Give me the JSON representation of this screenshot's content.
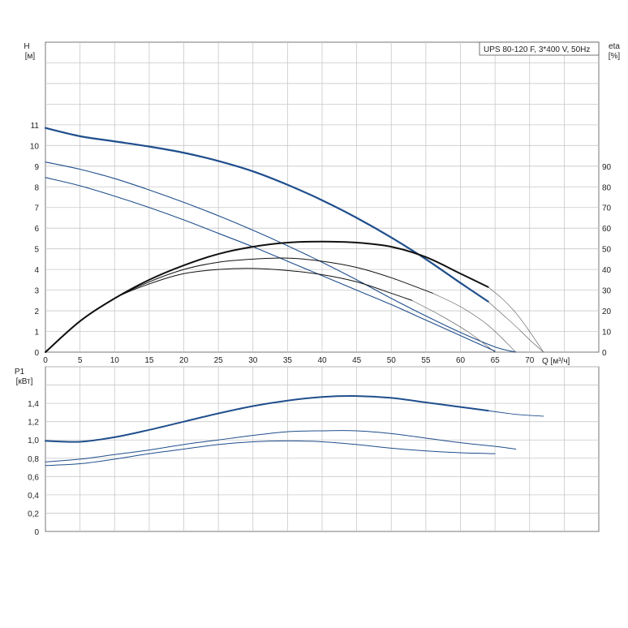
{
  "chart_data": [
    {
      "type": "line",
      "title": "",
      "legend_box": "UPS 80-120 F, 3*400 V, 50Hz",
      "xlabel": "Q [м³/ч]",
      "ylabel": "H",
      "ylabel_unit": "[м]",
      "y2label": "eta",
      "y2label_unit": "[%]",
      "xlim": [
        0,
        80
      ],
      "ylim": [
        0,
        15
      ],
      "y2lim": [
        0,
        150
      ],
      "x_ticks": [
        0,
        5,
        10,
        15,
        20,
        25,
        30,
        35,
        40,
        45,
        50,
        55,
        60,
        65,
        70
      ],
      "y_ticks": [
        0,
        1,
        2,
        3,
        4,
        5,
        6,
        7,
        8,
        9,
        10,
        11
      ],
      "y2_ticks": [
        0,
        10,
        20,
        30,
        40,
        50,
        60,
        70,
        80,
        90
      ],
      "grid": true,
      "series": [
        {
          "role": "head",
          "axis": "left",
          "color": "#1f4e8c",
          "width": 2.2,
          "x": [
            0,
            5,
            10,
            15,
            20,
            25,
            30,
            35,
            40,
            45,
            50,
            55,
            60,
            64
          ],
          "y": [
            10.85,
            10.45,
            10.2,
            9.95,
            9.65,
            9.25,
            8.75,
            8.1,
            7.35,
            6.5,
            5.55,
            4.5,
            3.35,
            2.45
          ]
        },
        {
          "role": "head",
          "axis": "left",
          "color": "#1f4e8c",
          "width": 1.1,
          "x": [
            0,
            5,
            10,
            15,
            20,
            25,
            30,
            35,
            40,
            45,
            50,
            55,
            60,
            65,
            68
          ],
          "y": [
            9.2,
            8.85,
            8.4,
            7.85,
            7.25,
            6.6,
            5.9,
            5.15,
            4.35,
            3.5,
            2.6,
            1.75,
            0.95,
            0.25,
            0
          ]
        },
        {
          "role": "head",
          "axis": "left",
          "color": "#1f4e8c",
          "width": 1.1,
          "x": [
            0,
            5,
            10,
            15,
            20,
            25,
            30,
            35,
            40,
            45,
            50,
            55,
            60,
            65
          ],
          "y": [
            8.45,
            8.05,
            7.55,
            7.0,
            6.4,
            5.75,
            5.1,
            4.4,
            3.7,
            3.0,
            2.3,
            1.55,
            0.8,
            0.05
          ]
        },
        {
          "role": "head-extension",
          "axis": "left",
          "color": "#555555",
          "width": 0.6,
          "x": [
            64,
            66,
            68,
            70,
            72
          ],
          "y": [
            2.45,
            1.85,
            1.25,
            0.6,
            0
          ]
        },
        {
          "role": "eta",
          "axis": "right",
          "color": "#111111",
          "width": 2.0,
          "x": [
            0,
            5,
            10,
            15,
            20,
            25,
            30,
            35,
            40,
            45,
            50,
            55,
            60,
            64
          ],
          "y": [
            0,
            15,
            26,
            35,
            42,
            47.5,
            51,
            53,
            53.5,
            53,
            51,
            46,
            38,
            31.5
          ]
        },
        {
          "role": "eta",
          "axis": "right",
          "color": "#111111",
          "width": 1.0,
          "x": [
            0,
            5,
            10,
            15,
            20,
            25,
            30,
            35,
            40,
            45,
            50,
            56
          ],
          "y": [
            0,
            15,
            26,
            34,
            40,
            43.5,
            45,
            45.5,
            44,
            41,
            36,
            28.5
          ]
        },
        {
          "role": "eta",
          "axis": "right",
          "color": "#111111",
          "width": 1.0,
          "x": [
            0,
            5,
            10,
            15,
            20,
            25,
            30,
            35,
            40,
            45,
            50,
            53
          ],
          "y": [
            0,
            15,
            26,
            33,
            38,
            40,
            40.5,
            39.5,
            37.5,
            34,
            28.5,
            25
          ]
        },
        {
          "role": "eta-extension",
          "axis": "right",
          "color": "#555555",
          "width": 0.6,
          "x": [
            64,
            66,
            68,
            70,
            72
          ],
          "y": [
            31.5,
            26,
            19,
            10,
            0
          ]
        },
        {
          "role": "eta-extension",
          "axis": "right",
          "color": "#555555",
          "width": 0.6,
          "x": [
            56,
            60,
            64,
            68
          ],
          "y": [
            28.5,
            22,
            13,
            0
          ]
        },
        {
          "role": "eta-extension",
          "axis": "right",
          "color": "#555555",
          "width": 0.6,
          "x": [
            53,
            57,
            61,
            65
          ],
          "y": [
            25,
            18,
            10,
            0
          ]
        }
      ]
    },
    {
      "type": "line",
      "title": "",
      "xlabel": "",
      "ylabel": "P1",
      "ylabel_unit": "[кВт]",
      "xlim": [
        0,
        80
      ],
      "ylim": [
        0,
        1.8
      ],
      "x_ticks": [
        0,
        5,
        10,
        15,
        20,
        25,
        30,
        35,
        40,
        45,
        50,
        55,
        60,
        65,
        70
      ],
      "y_ticks": [
        "0",
        "0,2",
        "0,4",
        "0,6",
        "0,8",
        "1,0",
        "1,2",
        "1,4"
      ],
      "y_tick_values": [
        0,
        0.2,
        0.4,
        0.6,
        0.8,
        1.0,
        1.2,
        1.4
      ],
      "grid": true,
      "series": [
        {
          "role": "power",
          "color": "#1f4e8c",
          "width": 2.0,
          "x": [
            0,
            5,
            10,
            15,
            20,
            25,
            30,
            35,
            40,
            45,
            50,
            55,
            60,
            64
          ],
          "y": [
            0.99,
            0.98,
            1.03,
            1.11,
            1.2,
            1.29,
            1.37,
            1.43,
            1.47,
            1.48,
            1.46,
            1.41,
            1.36,
            1.32
          ]
        },
        {
          "role": "power-extension",
          "color": "#1f4e8c",
          "width": 0.9,
          "x": [
            64,
            68,
            72
          ],
          "y": [
            1.32,
            1.28,
            1.26
          ]
        },
        {
          "role": "power",
          "color": "#1f4e8c",
          "width": 1.0,
          "x": [
            0,
            5,
            10,
            15,
            20,
            25,
            30,
            35,
            40,
            45,
            50,
            55,
            60,
            65,
            68
          ],
          "y": [
            0.76,
            0.79,
            0.84,
            0.89,
            0.95,
            1.0,
            1.05,
            1.09,
            1.1,
            1.1,
            1.07,
            1.02,
            0.97,
            0.93,
            0.9
          ]
        },
        {
          "role": "power",
          "color": "#1f4e8c",
          "width": 1.0,
          "x": [
            0,
            5,
            10,
            15,
            20,
            25,
            30,
            35,
            40,
            45,
            50,
            55,
            60,
            65
          ],
          "y": [
            0.72,
            0.74,
            0.79,
            0.85,
            0.9,
            0.95,
            0.98,
            0.99,
            0.98,
            0.95,
            0.91,
            0.88,
            0.86,
            0.85
          ]
        }
      ]
    }
  ]
}
